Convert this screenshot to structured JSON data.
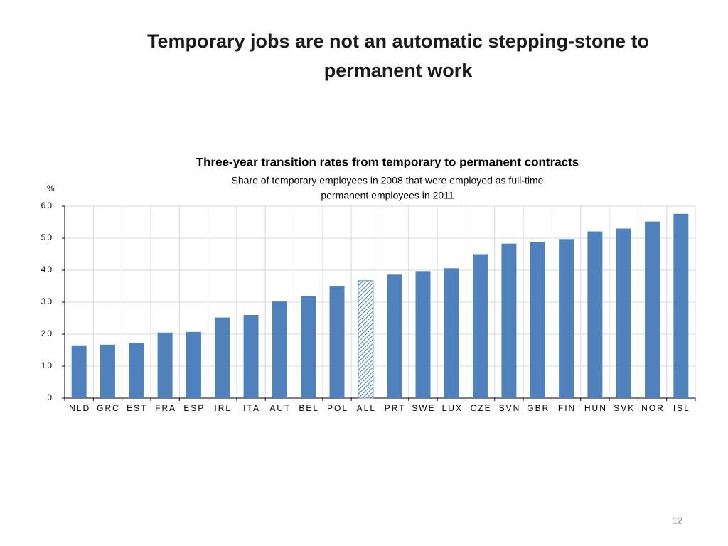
{
  "slide": {
    "title": [
      "Temporary jobs are not an automatic stepping-stone to",
      "permanent work"
    ],
    "page_number": "12"
  },
  "chart_data": {
    "type": "bar",
    "title": "Three-year transition rates from temporary to permanent contracts",
    "subtitle": [
      "Share of temporary employees in 2008 that were employed as full-time",
      "permanent employees in 2011"
    ],
    "y_label": "%",
    "categories": [
      "NLD",
      "GRC",
      "EST",
      "FRA",
      "ESP",
      "IRL",
      "ITA",
      "AUT",
      "BEL",
      "POL",
      "ALL",
      "PRT",
      "SWE",
      "LUX",
      "CZE",
      "SVN",
      "GBR",
      "FIN",
      "HUN",
      "SVK",
      "NOR",
      "ISL"
    ],
    "values": [
      16.5,
      16.7,
      17.3,
      20.5,
      20.7,
      25.2,
      26,
      30.2,
      31.9,
      35.1,
      36.7,
      38.6,
      39.7,
      40.6,
      45,
      48.3,
      48.8,
      49.7,
      52.1,
      53,
      55.2,
      57.6
    ],
    "color": "#4f81bd",
    "highlight_category": "ALL",
    "ylim": [
      0,
      60
    ],
    "yticks": [
      0,
      10,
      20,
      30,
      40,
      50,
      60
    ],
    "grid": true
  }
}
